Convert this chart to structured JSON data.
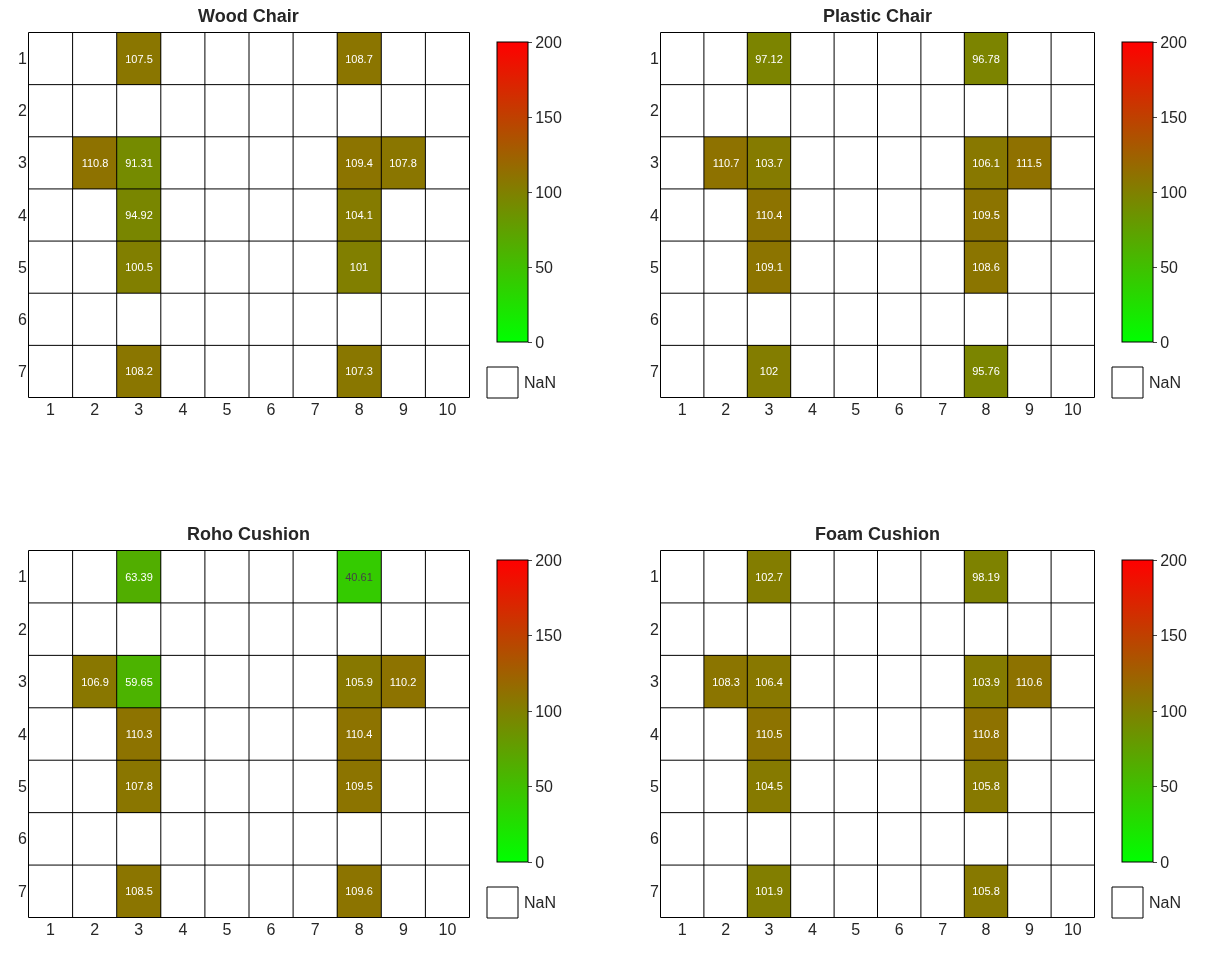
{
  "chart_data": [
    {
      "type": "heatmap",
      "title": "Wood Chair",
      "categories": [
        "1",
        "2",
        "3",
        "4",
        "5",
        "6",
        "7",
        "8",
        "9",
        "10"
      ],
      "y_categories": [
        "1",
        "2",
        "3",
        "4",
        "5",
        "6",
        "7"
      ],
      "cells": [
        [
          null,
          null,
          107.5,
          null,
          null,
          null,
          null,
          108.7,
          null,
          null
        ],
        [
          null,
          null,
          null,
          null,
          null,
          null,
          null,
          null,
          null,
          null
        ],
        [
          null,
          110.8,
          91.31,
          null,
          null,
          null,
          null,
          109.4,
          107.8,
          null
        ],
        [
          null,
          null,
          94.92,
          null,
          null,
          null,
          null,
          104.1,
          null,
          null
        ],
        [
          null,
          null,
          100.5,
          null,
          null,
          null,
          null,
          101,
          null,
          null
        ],
        [
          null,
          null,
          null,
          null,
          null,
          null,
          null,
          null,
          null,
          null
        ],
        [
          null,
          null,
          108.2,
          null,
          null,
          null,
          null,
          107.3,
          null,
          null
        ]
      ],
      "clim": [
        0,
        200
      ],
      "cticks": [
        0,
        50,
        100,
        150,
        200
      ],
      "colors": [
        "#00ff00",
        "#808000",
        "#ff0000"
      ],
      "data_labels": true,
      "annotations": [
        "NaN"
      ]
    },
    {
      "type": "heatmap",
      "title": "Plastic Chair",
      "categories": [
        "1",
        "2",
        "3",
        "4",
        "5",
        "6",
        "7",
        "8",
        "9",
        "10"
      ],
      "y_categories": [
        "1",
        "2",
        "3",
        "4",
        "5",
        "6",
        "7"
      ],
      "cells": [
        [
          null,
          null,
          97.12,
          null,
          null,
          null,
          null,
          96.78,
          null,
          null
        ],
        [
          null,
          null,
          null,
          null,
          null,
          null,
          null,
          null,
          null,
          null
        ],
        [
          null,
          110.7,
          103.7,
          null,
          null,
          null,
          null,
          106.1,
          111.5,
          null
        ],
        [
          null,
          null,
          110.4,
          null,
          null,
          null,
          null,
          109.5,
          null,
          null
        ],
        [
          null,
          null,
          109.1,
          null,
          null,
          null,
          null,
          108.6,
          null,
          null
        ],
        [
          null,
          null,
          null,
          null,
          null,
          null,
          null,
          null,
          null,
          null
        ],
        [
          null,
          null,
          102,
          null,
          null,
          null,
          null,
          95.76,
          null,
          null
        ]
      ],
      "clim": [
        0,
        200
      ],
      "cticks": [
        0,
        50,
        100,
        150,
        200
      ],
      "colors": [
        "#00ff00",
        "#808000",
        "#ff0000"
      ],
      "data_labels": true,
      "annotations": [
        "NaN"
      ]
    },
    {
      "type": "heatmap",
      "title": "Roho Cushion",
      "categories": [
        "1",
        "2",
        "3",
        "4",
        "5",
        "6",
        "7",
        "8",
        "9",
        "10"
      ],
      "y_categories": [
        "1",
        "2",
        "3",
        "4",
        "5",
        "6",
        "7"
      ],
      "cells": [
        [
          null,
          null,
          63.39,
          null,
          null,
          null,
          null,
          40.61,
          null,
          null
        ],
        [
          null,
          null,
          null,
          null,
          null,
          null,
          null,
          null,
          null,
          null
        ],
        [
          null,
          106.9,
          59.65,
          null,
          null,
          null,
          null,
          105.9,
          110.2,
          null
        ],
        [
          null,
          null,
          110.3,
          null,
          null,
          null,
          null,
          110.4,
          null,
          null
        ],
        [
          null,
          null,
          107.8,
          null,
          null,
          null,
          null,
          109.5,
          null,
          null
        ],
        [
          null,
          null,
          null,
          null,
          null,
          null,
          null,
          null,
          null,
          null
        ],
        [
          null,
          null,
          108.5,
          null,
          null,
          null,
          null,
          109.6,
          null,
          null
        ]
      ],
      "clim": [
        0,
        200
      ],
      "cticks": [
        0,
        50,
        100,
        150,
        200
      ],
      "colors": [
        "#00ff00",
        "#808000",
        "#ff0000"
      ],
      "data_labels": true,
      "annotations": [
        "NaN"
      ]
    },
    {
      "type": "heatmap",
      "title": "Foam Cushion",
      "categories": [
        "1",
        "2",
        "3",
        "4",
        "5",
        "6",
        "7",
        "8",
        "9",
        "10"
      ],
      "y_categories": [
        "1",
        "2",
        "3",
        "4",
        "5",
        "6",
        "7"
      ],
      "cells": [
        [
          null,
          null,
          102.7,
          null,
          null,
          null,
          null,
          98.19,
          null,
          null
        ],
        [
          null,
          null,
          null,
          null,
          null,
          null,
          null,
          null,
          null,
          null
        ],
        [
          null,
          108.3,
          106.4,
          null,
          null,
          null,
          null,
          103.9,
          110.6,
          null
        ],
        [
          null,
          null,
          110.5,
          null,
          null,
          null,
          null,
          110.8,
          null,
          null
        ],
        [
          null,
          null,
          104.5,
          null,
          null,
          null,
          null,
          105.8,
          null,
          null
        ],
        [
          null,
          null,
          null,
          null,
          null,
          null,
          null,
          null,
          null,
          null
        ],
        [
          null,
          null,
          101.9,
          null,
          null,
          null,
          null,
          105.8,
          null,
          null
        ]
      ],
      "clim": [
        0,
        200
      ],
      "cticks": [
        0,
        50,
        100,
        150,
        200
      ],
      "colors": [
        "#00ff00",
        "#808000",
        "#ff0000"
      ],
      "data_labels": true,
      "annotations": [
        "NaN"
      ]
    }
  ]
}
